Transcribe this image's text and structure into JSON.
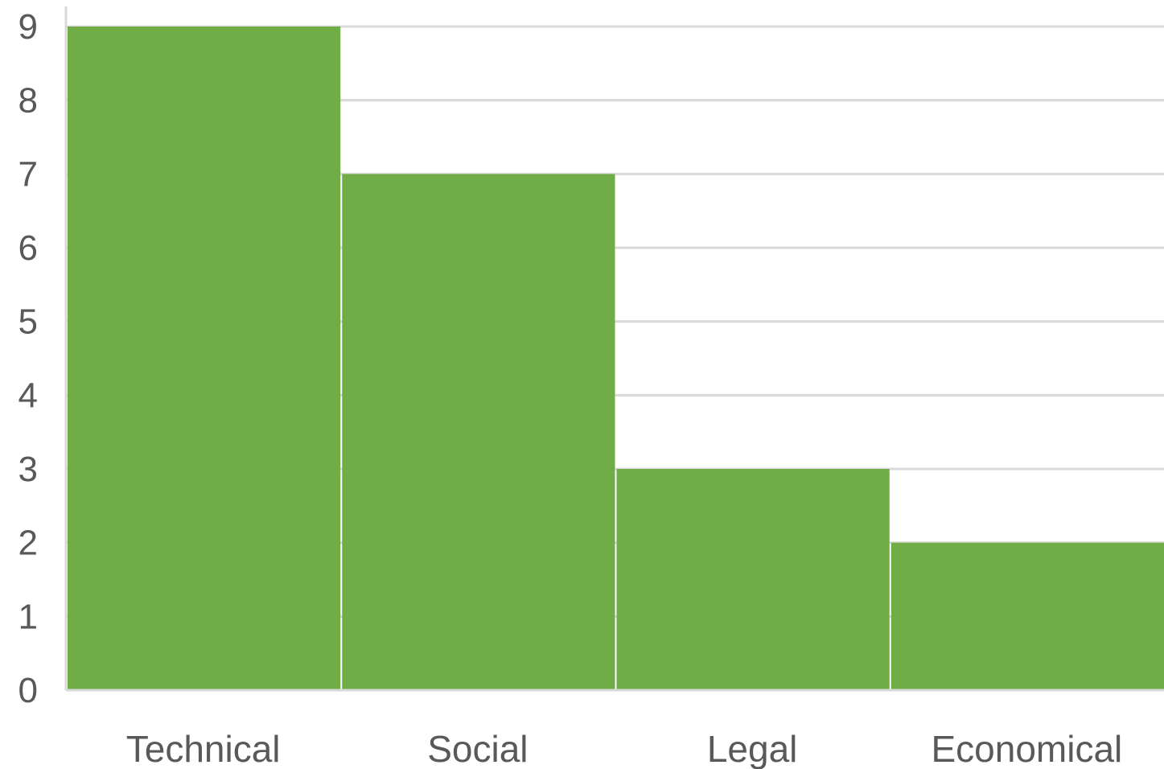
{
  "chart_data": {
    "type": "bar",
    "title": "",
    "xlabel": "",
    "ylabel": "",
    "categories": [
      "Technical",
      "Social",
      "Legal",
      "Economical"
    ],
    "values": [
      9,
      7,
      3,
      2
    ],
    "ylim": [
      0,
      9
    ],
    "yticks": [
      "0",
      "1",
      "2",
      "3",
      "4",
      "5",
      "6",
      "7",
      "8",
      "9"
    ],
    "grid": true,
    "legend": "none",
    "bar_color": "#70AD47",
    "grid_color": "#D9D9D9",
    "text_color": "#595959"
  }
}
